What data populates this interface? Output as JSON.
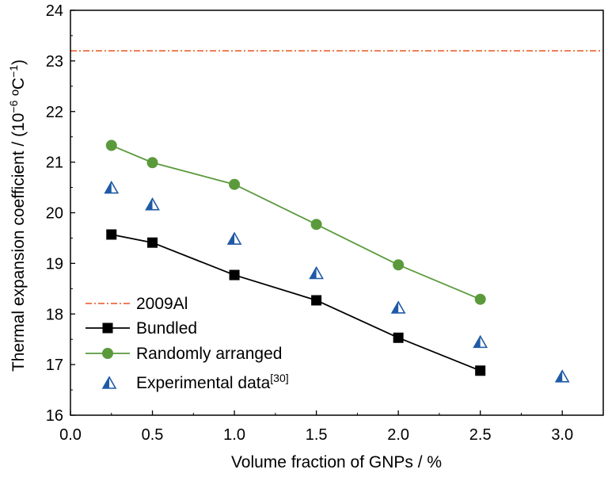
{
  "chart_data": {
    "type": "line",
    "xlabel": "Volume fraction of GNPs / %",
    "ylabel": {
      "main": "Thermal expansion coefficient / (10",
      "exp1": "−6",
      "unit": " ºC",
      "exp2": "−1",
      "close": ")"
    },
    "xlim": [
      0.0,
      3.25
    ],
    "ylim": [
      16,
      24
    ],
    "xticks": [
      "0.0",
      "0.5",
      "1.0",
      "1.5",
      "2.0",
      "2.5",
      "3.0"
    ],
    "xtick_values": [
      0.0,
      0.5,
      1.0,
      1.5,
      2.0,
      2.5,
      3.0
    ],
    "yticks": [
      "16",
      "17",
      "18",
      "19",
      "20",
      "21",
      "22",
      "23",
      "24"
    ],
    "ytick_values": [
      16,
      17,
      18,
      19,
      20,
      21,
      22,
      23,
      24
    ],
    "grid": false,
    "legend_position": "bottom-left",
    "reference_line": {
      "name": "2009Al",
      "value": 23.2,
      "color": "#e8541e",
      "style": "dash-dot"
    },
    "series": [
      {
        "name": "Bundled",
        "marker": "square",
        "color": "#000000",
        "connected": true,
        "x": [
          0.25,
          0.5,
          1.0,
          1.5,
          2.0,
          2.5
        ],
        "y": [
          19.57,
          19.41,
          18.77,
          18.27,
          17.53,
          16.88
        ]
      },
      {
        "name": "Randomly arranged",
        "marker": "circle",
        "color": "#5a9a3c",
        "connected": true,
        "x": [
          0.25,
          0.5,
          1.0,
          1.5,
          2.0,
          2.5
        ],
        "y": [
          21.33,
          20.99,
          20.56,
          19.77,
          18.97,
          18.29
        ]
      },
      {
        "name": "Experimental data",
        "name_sup": "[30]",
        "marker": "half-triangle",
        "color": "#1f5aa6",
        "connected": false,
        "x": [
          0.25,
          0.5,
          1.0,
          1.5,
          2.0,
          2.5,
          3.0
        ],
        "y": [
          20.5,
          20.17,
          19.49,
          18.81,
          18.13,
          17.45,
          16.77
        ]
      }
    ]
  }
}
